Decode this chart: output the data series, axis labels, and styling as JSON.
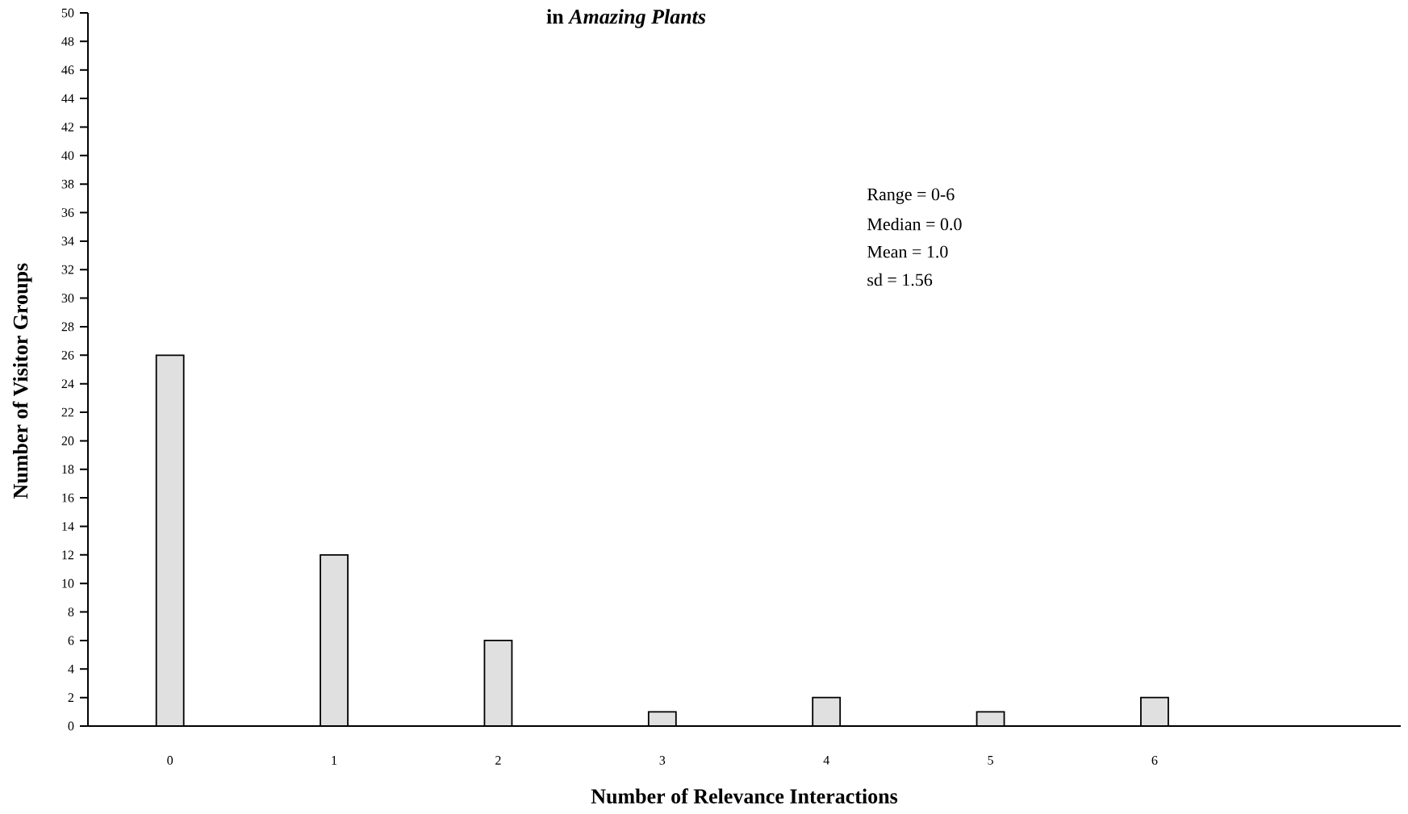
{
  "chart_data": {
    "type": "bar",
    "title": "in *Amazing Plants*",
    "xlabel": "Number of Relevance Interactions",
    "ylabel": "Number of Visitor Groups",
    "categories": [
      "0",
      "1",
      "2",
      "3",
      "4",
      "5",
      "6",
      null
    ],
    "values": [
      26,
      12,
      6,
      1,
      2,
      1,
      2,
      null
    ],
    "color": "#e0e0e0",
    "ylim": [
      0,
      50
    ],
    "yticks": [
      0,
      2,
      4,
      6,
      8,
      10,
      12,
      14,
      16,
      18,
      20,
      22,
      24,
      26,
      28,
      30,
      32,
      34,
      36,
      38,
      40,
      42,
      44,
      46,
      48,
      50
    ],
    "annotations": [
      "Range = 0-6",
      "Median = 0.0",
      "Mean = 1.0",
      "sd = 1.56"
    ]
  }
}
